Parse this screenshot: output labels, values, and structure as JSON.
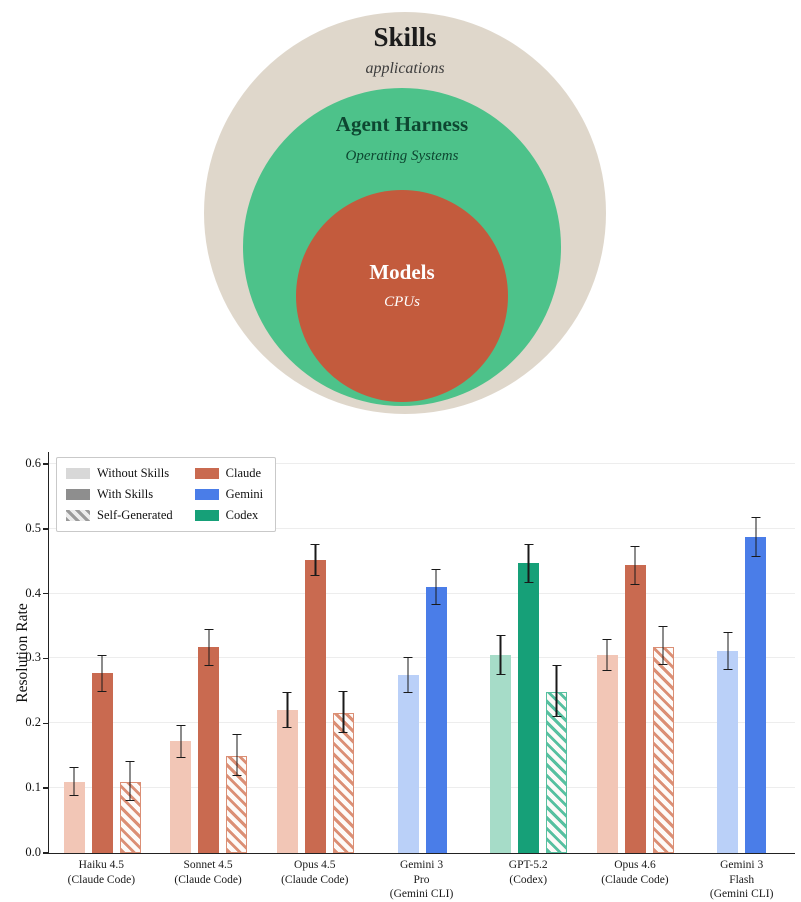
{
  "venn": {
    "outer": {
      "title": "Skills",
      "subtitle": "applications"
    },
    "middle": {
      "title": "Agent Harness",
      "subtitle": "Operating Systems"
    },
    "inner": {
      "title": "Models",
      "subtitle": "CPUs"
    },
    "colors": {
      "outer": "#DFD7CB",
      "middle": "#4DC28A",
      "inner": "#C35B3D",
      "outer_title_text": "#1c1c1c",
      "outer_sub_text": "#3d3d3d",
      "middle_text": "#0d4731",
      "inner_text": "#ffffff"
    }
  },
  "chart_data": {
    "type": "bar",
    "title": "",
    "xlabel": "",
    "ylabel": "Resolution Rate",
    "ylim": [
      0,
      0.62
    ],
    "yticks": [
      0,
      0.1,
      0.2,
      0.3,
      0.4,
      0.5,
      0.6
    ],
    "grid": true,
    "legend_position": "upper left",
    "error_bars": true,
    "legend": {
      "styles": [
        {
          "id": "without",
          "label": "Without Skills",
          "swatch": "#D8D8D8",
          "hatch": false
        },
        {
          "id": "with",
          "label": "With Skills",
          "swatch": "#8E8E8E",
          "hatch": false
        },
        {
          "id": "self",
          "label": "Self-Generated",
          "swatch": "#9A9A9A",
          "hatch": true
        }
      ],
      "family_order": [
        "claude",
        "gemini",
        "codex"
      ]
    },
    "families": {
      "claude": {
        "label": "Claude",
        "solid": "#C96A50",
        "light": "#F2C6B6",
        "hatch": "#DB8F75"
      },
      "gemini": {
        "label": "Gemini",
        "solid": "#4A7DE8",
        "light": "#BAD0F8",
        "hatch": "#84A9F1"
      },
      "codex": {
        "label": "Codex",
        "solid": "#16A078",
        "light": "#A6DCC8",
        "hatch": "#57C0A0"
      }
    },
    "groups": [
      {
        "family": "claude",
        "label_lines": [
          "Haiku 4.5",
          "(Claude Code)"
        ],
        "bars": [
          {
            "style": "without",
            "value": 0.11,
            "err": 0.022
          },
          {
            "style": "with",
            "value": 0.277,
            "err": 0.029
          },
          {
            "style": "self",
            "value": 0.11,
            "err": 0.031
          }
        ]
      },
      {
        "family": "claude",
        "label_lines": [
          "Sonnet 4.5",
          "(Claude Code)"
        ],
        "bars": [
          {
            "style": "without",
            "value": 0.172,
            "err": 0.025
          },
          {
            "style": "with",
            "value": 0.317,
            "err": 0.028
          },
          {
            "style": "self",
            "value": 0.15,
            "err": 0.032
          }
        ]
      },
      {
        "family": "claude",
        "label_lines": [
          "Opus 4.5",
          "(Claude Code)"
        ],
        "bars": [
          {
            "style": "without",
            "value": 0.221,
            "err": 0.028
          },
          {
            "style": "with",
            "value": 0.452,
            "err": 0.024
          },
          {
            "style": "self",
            "value": 0.216,
            "err": 0.033
          }
        ]
      },
      {
        "family": "gemini",
        "label_lines": [
          "Gemini 3",
          "Pro",
          "(Gemini CLI)"
        ],
        "bars": [
          {
            "style": "without",
            "value": 0.275,
            "err": 0.028
          },
          {
            "style": "with",
            "value": 0.41,
            "err": 0.028
          }
        ]
      },
      {
        "family": "codex",
        "label_lines": [
          "GPT-5.2",
          "(Codex)"
        ],
        "bars": [
          {
            "style": "without",
            "value": 0.305,
            "err": 0.031
          },
          {
            "style": "with",
            "value": 0.447,
            "err": 0.03
          },
          {
            "style": "self",
            "value": 0.249,
            "err": 0.04
          }
        ]
      },
      {
        "family": "claude",
        "label_lines": [
          "Opus 4.6",
          "(Claude Code)"
        ],
        "bars": [
          {
            "style": "without",
            "value": 0.305,
            "err": 0.025
          },
          {
            "style": "with",
            "value": 0.444,
            "err": 0.03
          },
          {
            "style": "self",
            "value": 0.318,
            "err": 0.03
          }
        ]
      },
      {
        "family": "gemini",
        "label_lines": [
          "Gemini 3",
          "Flash",
          "(Gemini CLI)"
        ],
        "bars": [
          {
            "style": "without",
            "value": 0.312,
            "err": 0.029
          },
          {
            "style": "with",
            "value": 0.487,
            "err": 0.031
          }
        ]
      }
    ]
  }
}
